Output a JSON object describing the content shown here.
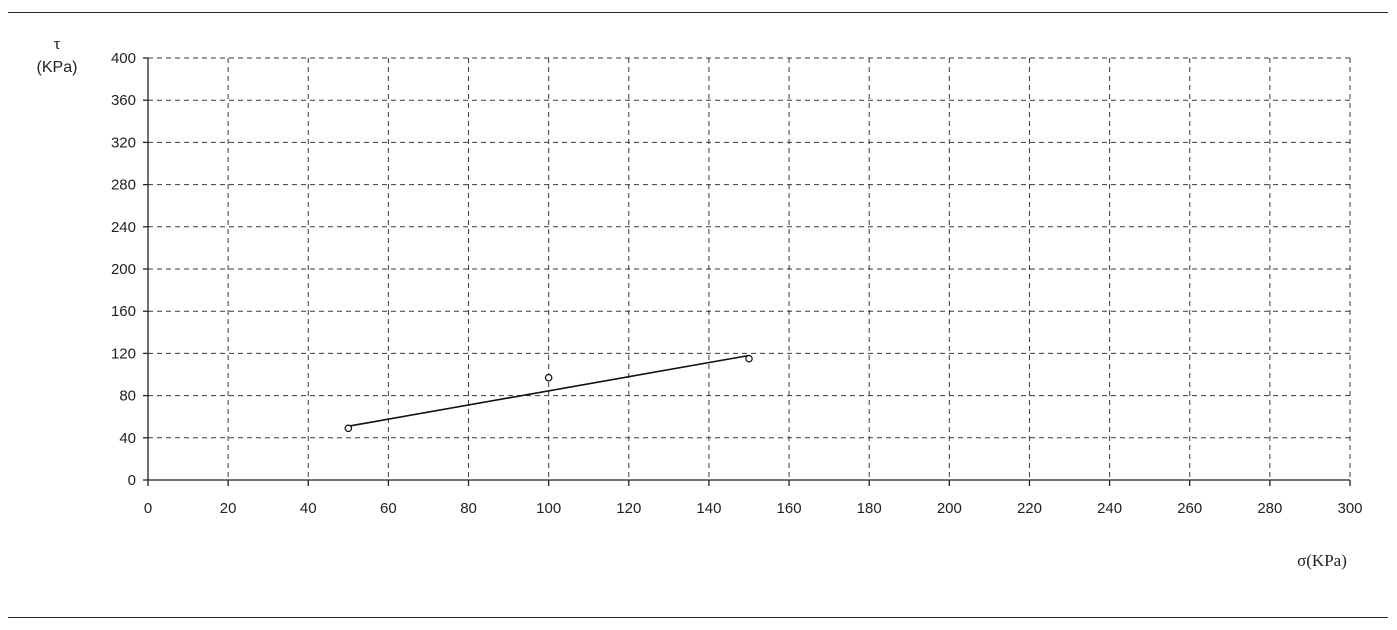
{
  "chart_data": {
    "type": "scatter",
    "title": "",
    "ylabel_symbol": "τ",
    "ylabel_unit": "(KPa)",
    "xlabel": "σ(KPa)",
    "xlim": [
      0,
      300
    ],
    "ylim": [
      0,
      400
    ],
    "x_ticks": [
      0,
      20,
      40,
      60,
      80,
      100,
      120,
      140,
      160,
      180,
      200,
      220,
      240,
      260,
      280,
      300
    ],
    "y_ticks": [
      0,
      40,
      80,
      120,
      160,
      200,
      240,
      280,
      320,
      360,
      400
    ],
    "grid": true,
    "series": [
      {
        "points": [
          [
            50,
            49
          ],
          [
            100,
            97
          ],
          [
            150,
            115
          ]
        ]
      }
    ],
    "fit_line": {
      "x": [
        50,
        150
      ],
      "y": [
        51,
        118
      ]
    }
  }
}
